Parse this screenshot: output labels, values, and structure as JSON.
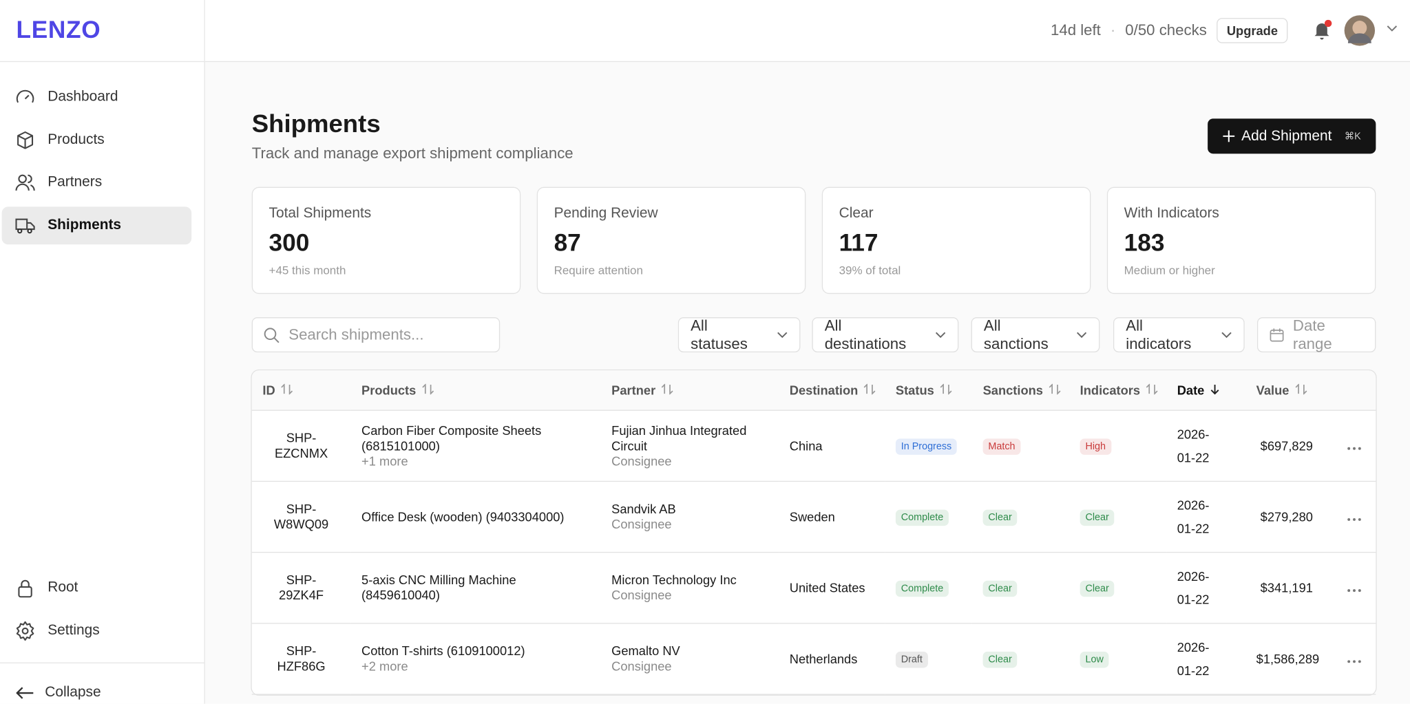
{
  "brand": "LENZO",
  "topbar": {
    "trial": "14d left",
    "separator": "·",
    "checks": "0/50 checks",
    "upgrade": "Upgrade"
  },
  "nav": [
    "Dashboard",
    "Products",
    "Partners",
    "Shipments"
  ],
  "active_nav": 3,
  "nav_bottom": [
    "Root",
    "Settings"
  ],
  "collapse": "Collapse",
  "page": {
    "title": "Shipments",
    "subtitle": "Track and manage export shipment compliance",
    "button": "Add Shipment",
    "shortcut": "⌘K"
  },
  "stats": [
    {
      "label": "Total Shipments",
      "value": "300",
      "note": "+45 this month"
    },
    {
      "label": "Pending Review",
      "value": "87",
      "note": "Require attention"
    },
    {
      "label": "Clear",
      "value": "117",
      "note": "39% of total"
    },
    {
      "label": "With Indicators",
      "value": "183",
      "note": "Medium or higher"
    }
  ],
  "search_placeholder": "Search shipments...",
  "filters": [
    "All statuses",
    "All destinations",
    "All sanctions",
    "All indicators"
  ],
  "date_filter": "Date range",
  "table": {
    "columns": [
      "ID",
      "Products",
      "Partner",
      "Destination",
      "Status",
      "Sanctions",
      "Indicators",
      "Date",
      "Value"
    ],
    "sorted_column": 7,
    "rows": [
      {
        "id": "SHP-EZCNMX",
        "product": "Carbon Fiber Composite Sheets (6815101000)",
        "more": "+1 more",
        "partner": "Fujian Jinhua Integrated Circuit",
        "role": "Consignee",
        "destination": "China",
        "status": {
          "text": "In Progress",
          "color": "#2f6fd6"
        },
        "sanctions": {
          "text": "Match",
          "color": "#c93b3b"
        },
        "indicators": {
          "text": "High",
          "color": "#c93b3b"
        },
        "date": "2026-01-22",
        "value": "$697,829"
      },
      {
        "id": "SHP-W8WQ09",
        "product": "Office Desk (wooden) (9403304000)",
        "partner": "Sandvik AB",
        "role": "Consignee",
        "destination": "Sweden",
        "status": {
          "text": "Complete",
          "color": "#2e8b4a"
        },
        "sanctions": {
          "text": "Clear",
          "color": "#2e8b4a"
        },
        "indicators": {
          "text": "Clear",
          "color": "#2e8b4a"
        },
        "date": "2026-01-22",
        "value": "$279,280"
      },
      {
        "id": "SHP-29ZK4F",
        "product": "5-axis CNC Milling Machine (8459610040)",
        "partner": "Micron Technology Inc",
        "role": "Consignee",
        "destination": "United States",
        "status": {
          "text": "Complete",
          "color": "#2e8b4a"
        },
        "sanctions": {
          "text": "Clear",
          "color": "#2e8b4a"
        },
        "indicators": {
          "text": "Clear",
          "color": "#2e8b4a"
        },
        "date": "2026-01-22",
        "value": "$341,191"
      },
      {
        "id": "SHP-HZF86G",
        "product": "Cotton T-shirts (6109100012)",
        "more": "+2 more",
        "partner": "Gemalto NV",
        "role": "Consignee",
        "destination": "Netherlands",
        "status": {
          "text": "Draft",
          "color": "#555555"
        },
        "sanctions": {
          "text": "Clear",
          "color": "#2e8b4a"
        },
        "indicators": {
          "text": "Low",
          "color": "#2e8b4a"
        },
        "date": "2026-01-22",
        "value": "$1,586,289"
      }
    ]
  }
}
